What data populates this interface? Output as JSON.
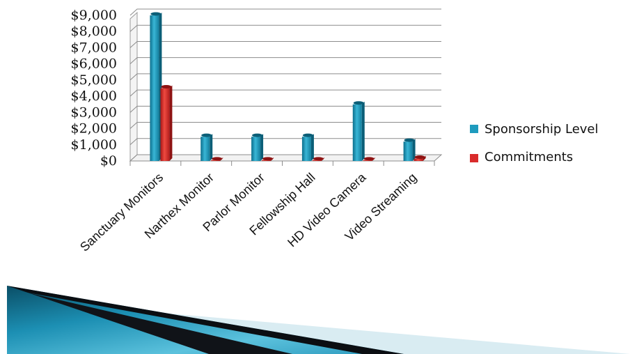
{
  "chart_data": {
    "type": "bar",
    "categories": [
      "Sanctuary Monitors",
      "Narthex Monitor",
      "Parlor Monitor",
      "Fellowship Hall",
      "HD Video Camera",
      "Video Streaming"
    ],
    "series": [
      {
        "name": "Sponsorship Level",
        "color": "#1E9BBE",
        "values": [
          9000,
          1500,
          1500,
          1500,
          3500,
          1200
        ]
      },
      {
        "name": "Commitments",
        "color": "#D92B2B",
        "values": [
          4500,
          50,
          50,
          50,
          50,
          150
        ]
      }
    ],
    "yticks": [
      "$0",
      "$1,000",
      "$2,000",
      "$3,000",
      "$4,000",
      "$5,000",
      "$6,000",
      "$7,000",
      "$8,000",
      "$9,000"
    ],
    "ylim": [
      0,
      9000
    ],
    "title": "",
    "xlabel": "",
    "ylabel": "",
    "grid": true,
    "legend_position": "right"
  }
}
